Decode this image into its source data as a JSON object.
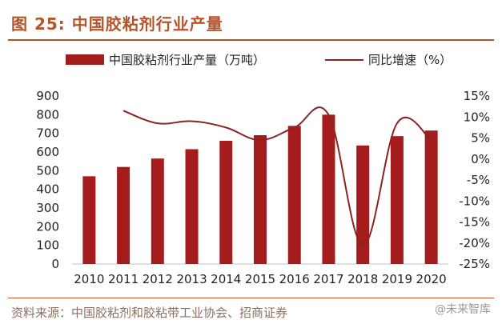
{
  "header": {
    "title": "图 25: 中国胶粘剂行业产量"
  },
  "footer": {
    "source": "资料来源：中国胶粘剂和胶粘带工业协会、招商证券",
    "watermark": "@未来智库"
  },
  "colors": {
    "bar": "#a51c1c",
    "line": "#8b2323",
    "accent": "#b5542a"
  },
  "chart_data": {
    "type": "bar",
    "categories": [
      "2010",
      "2011",
      "2012",
      "2013",
      "2014",
      "2015",
      "2016",
      "2017",
      "2018",
      "2019",
      "2020"
    ],
    "series": [
      {
        "name": "中国胶粘剂行业产量（万吨）",
        "type": "bar",
        "axis": "left",
        "values": [
          470,
          520,
          565,
          615,
          660,
          690,
          740,
          800,
          635,
          685,
          715
        ]
      },
      {
        "name": "同比增速（%）",
        "type": "line",
        "axis": "right",
        "values": [
          null,
          11.5,
          8.5,
          9.0,
          7.5,
          4.5,
          7.5,
          10.5,
          -20.5,
          8.5,
          4.5
        ]
      }
    ],
    "y_left": {
      "ylim": [
        0,
        900
      ],
      "ticks": [
        "0",
        "100",
        "200",
        "300",
        "400",
        "500",
        "600",
        "700",
        "800",
        "900"
      ]
    },
    "y_right": {
      "ylim": [
        -25,
        15
      ],
      "ticks": [
        "-25%",
        "-20%",
        "-15%",
        "-10%",
        "-5%",
        "0%",
        "5%",
        "10%",
        "15%"
      ]
    },
    "legend_position": "top",
    "grid": false
  }
}
